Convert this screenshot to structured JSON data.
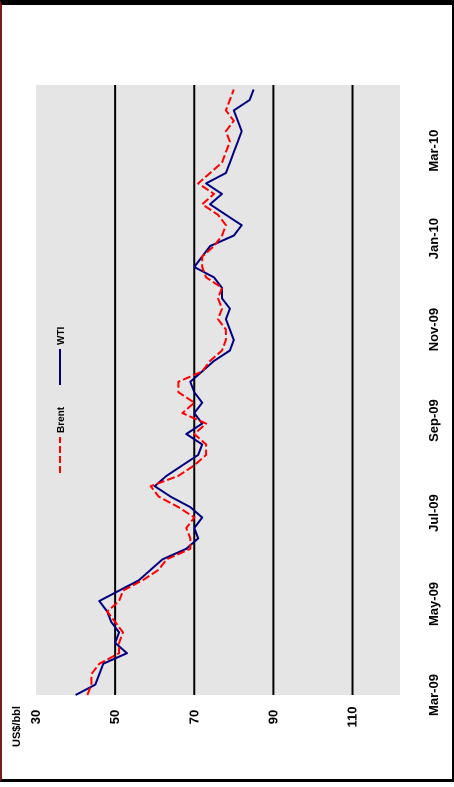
{
  "chart_data": {
    "type": "line",
    "orientation": "rotated-90-ccw",
    "ylabel": "US$/bbl",
    "ylim": [
      30,
      122
    ],
    "yticks": [
      30,
      50,
      70,
      90,
      110
    ],
    "xlim": [
      "2009-03-01",
      "2010-04-14"
    ],
    "xticks": [
      "Mar-09",
      "May-09",
      "Jul-09",
      "Sep-09",
      "Nov-09",
      "Jan-10",
      "Mar-10"
    ],
    "xtick_dates": [
      "2009-03-01",
      "2009-05-01",
      "2009-07-01",
      "2009-09-01",
      "2009-11-01",
      "2010-01-01",
      "2010-03-01"
    ],
    "grid": "horizontal at y ticks",
    "legend": "top",
    "colors": {
      "WTI": "#000080",
      "Brent": "#ff0000",
      "plot_bg": "#e5e5e5"
    },
    "series": [
      {
        "name": "WTI",
        "x": [
          "2009-03-01",
          "2009-03-08",
          "2009-03-15",
          "2009-03-22",
          "2009-03-29",
          "2009-04-05",
          "2009-04-12",
          "2009-04-19",
          "2009-04-26",
          "2009-05-03",
          "2009-05-10",
          "2009-05-17",
          "2009-05-24",
          "2009-05-31",
          "2009-06-07",
          "2009-06-14",
          "2009-06-21",
          "2009-06-28",
          "2009-07-05",
          "2009-07-12",
          "2009-07-19",
          "2009-07-26",
          "2009-08-02",
          "2009-08-09",
          "2009-08-16",
          "2009-08-23",
          "2009-08-30",
          "2009-09-06",
          "2009-09-13",
          "2009-09-20",
          "2009-09-27",
          "2009-10-04",
          "2009-10-11",
          "2009-10-18",
          "2009-10-25",
          "2009-11-01",
          "2009-11-08",
          "2009-11-15",
          "2009-11-22",
          "2009-11-29",
          "2009-12-06",
          "2009-12-13",
          "2009-12-20",
          "2009-12-27",
          "2010-01-03",
          "2010-01-10",
          "2010-01-17",
          "2010-01-24",
          "2010-01-31",
          "2010-02-07",
          "2010-02-14",
          "2010-02-21",
          "2010-02-28",
          "2010-03-07",
          "2010-03-14",
          "2010-03-21",
          "2010-03-28",
          "2010-04-04",
          "2010-04-11"
        ],
        "values": [
          40,
          45,
          46,
          47,
          53,
          50,
          51,
          49,
          48,
          46,
          51,
          56,
          59,
          62,
          68,
          71,
          70,
          72,
          69,
          64,
          60,
          63,
          67,
          71,
          72,
          68,
          72,
          70,
          72,
          70,
          69,
          72,
          75,
          79,
          80,
          79,
          78,
          79,
          77,
          77,
          75,
          70,
          72,
          74,
          80,
          82,
          78,
          74,
          77,
          73,
          78,
          79,
          80,
          81,
          82,
          81,
          80,
          84,
          85
        ]
      },
      {
        "name": "Brent",
        "x": [
          "2009-03-01",
          "2009-03-08",
          "2009-03-15",
          "2009-03-22",
          "2009-03-29",
          "2009-04-05",
          "2009-04-12",
          "2009-04-19",
          "2009-04-26",
          "2009-05-03",
          "2009-05-10",
          "2009-05-17",
          "2009-05-24",
          "2009-05-31",
          "2009-06-07",
          "2009-06-14",
          "2009-06-21",
          "2009-06-28",
          "2009-07-05",
          "2009-07-12",
          "2009-07-19",
          "2009-07-26",
          "2009-08-02",
          "2009-08-09",
          "2009-08-16",
          "2009-08-23",
          "2009-08-30",
          "2009-09-06",
          "2009-09-13",
          "2009-09-20",
          "2009-09-27",
          "2009-10-04",
          "2009-10-11",
          "2009-10-18",
          "2009-10-25",
          "2009-11-01",
          "2009-11-08",
          "2009-11-15",
          "2009-11-22",
          "2009-11-29",
          "2009-12-06",
          "2009-12-13",
          "2009-12-20",
          "2009-12-27",
          "2010-01-03",
          "2010-01-10",
          "2010-01-17",
          "2010-01-24",
          "2010-01-31",
          "2010-02-07",
          "2010-02-14",
          "2010-02-21",
          "2010-02-28",
          "2010-03-07",
          "2010-03-14",
          "2010-03-21",
          "2010-03-28",
          "2010-04-04",
          "2010-04-11"
        ],
        "values": [
          43,
          44,
          44,
          46,
          51,
          51,
          52,
          50,
          48,
          51,
          52,
          57,
          61,
          63,
          69,
          69,
          68,
          70,
          66,
          61,
          59,
          66,
          70,
          73,
          73,
          70,
          73,
          67,
          70,
          66,
          66,
          72,
          74,
          77,
          78,
          78,
          76,
          77,
          76,
          77,
          73,
          72,
          72,
          75,
          77,
          78,
          76,
          72,
          75,
          71,
          74,
          77,
          78,
          79,
          78,
          80,
          78,
          79,
          80
        ]
      }
    ]
  }
}
